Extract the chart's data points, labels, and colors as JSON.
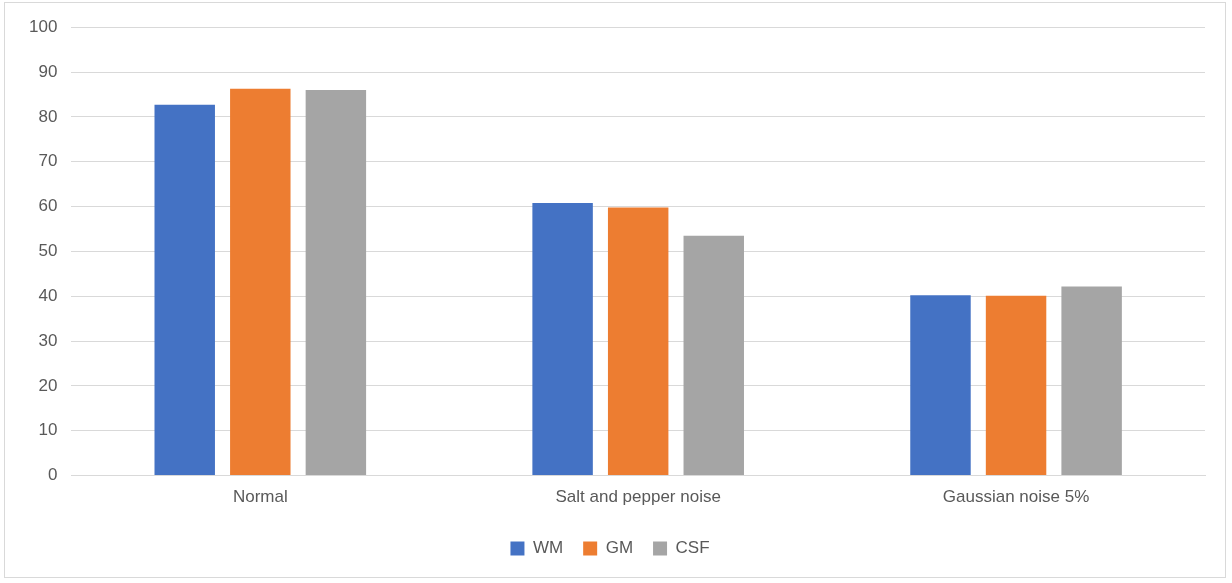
{
  "chart_data": {
    "type": "bar",
    "categories": [
      "Normal",
      "Salt and pepper noise",
      "Gaussian noise 5%"
    ],
    "series": [
      {
        "name": "WM",
        "color": "#4472c4",
        "values": [
          82.7,
          60.8,
          40.2
        ]
      },
      {
        "name": "GM",
        "color": "#ed7d31",
        "values": [
          86.3,
          59.8,
          40.1
        ]
      },
      {
        "name": "CSF",
        "color": "#a5a5a5",
        "values": [
          86.0,
          53.5,
          42.2
        ]
      }
    ],
    "ylim": [
      0,
      100
    ],
    "yticks": [
      0,
      10,
      20,
      30,
      40,
      50,
      60,
      70,
      80,
      90,
      100
    ],
    "grid": "y",
    "legend": "bottom"
  }
}
